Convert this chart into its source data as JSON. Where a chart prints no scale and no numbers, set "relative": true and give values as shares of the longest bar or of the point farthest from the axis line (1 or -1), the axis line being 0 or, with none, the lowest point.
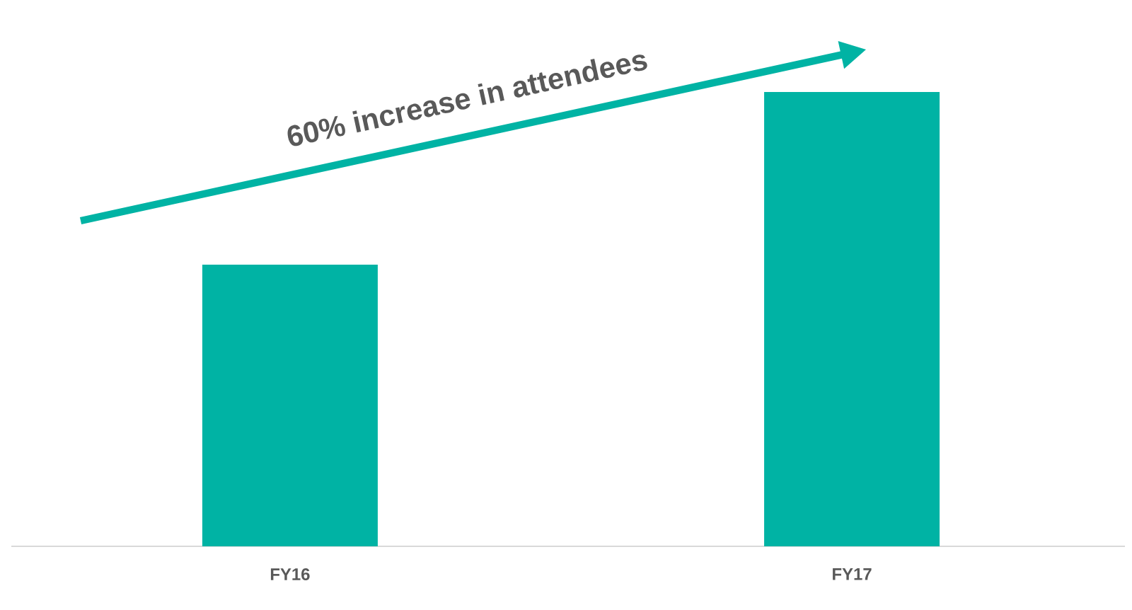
{
  "chart_data": {
    "type": "bar",
    "relative": true,
    "categories": [
      "FY16",
      "FY17"
    ],
    "values": [
      0.62,
      1
    ],
    "color": "#00b3a4",
    "annotations": [
      "60% increase in attendees"
    ]
  }
}
